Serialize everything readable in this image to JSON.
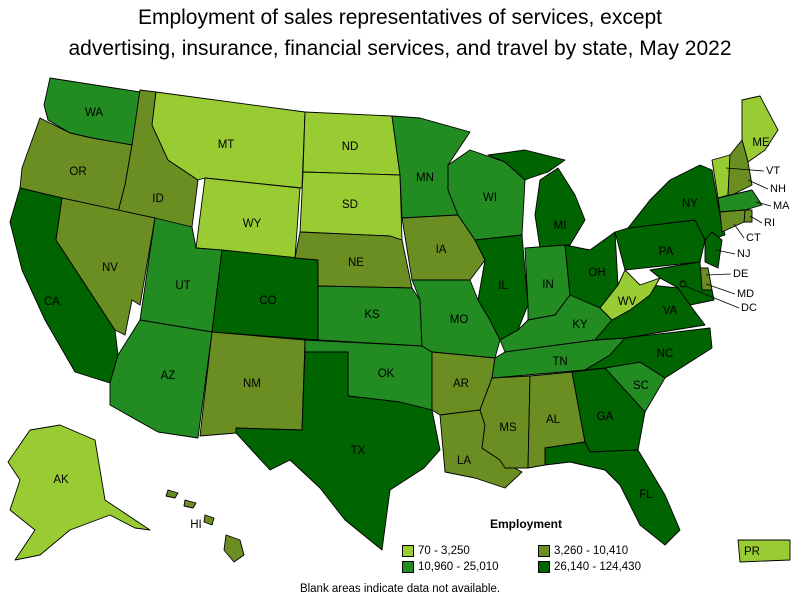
{
  "title": {
    "line1": "Employment of sales representatives of services, except",
    "line2": "advertising, insurance, financial services, and travel by state, May 2022"
  },
  "colors": {
    "tier1": "#99cc33",
    "tier2": "#6b8e23",
    "tier3": "#228b22",
    "tier4": "#006400"
  },
  "legend": {
    "title": "Employment",
    "items": [
      {
        "label": "70 - 3,250",
        "tier": "tier1"
      },
      {
        "label": "3,260 - 10,410",
        "tier": "tier2"
      },
      {
        "label": "10,960 - 25,010",
        "tier": "tier3"
      },
      {
        "label": "26,140 - 124,430",
        "tier": "tier4"
      }
    ]
  },
  "note": "Blank areas indicate data not available.",
  "states": {
    "WA": "tier3",
    "OR": "tier2",
    "CA": "tier4",
    "ID": "tier2",
    "NV": "tier2",
    "MT": "tier1",
    "WY": "tier1",
    "UT": "tier3",
    "AZ": "tier3",
    "CO": "tier4",
    "NM": "tier2",
    "ND": "tier1",
    "SD": "tier1",
    "NE": "tier2",
    "KS": "tier3",
    "OK": "tier3",
    "TX": "tier4",
    "MN": "tier3",
    "IA": "tier2",
    "MO": "tier3",
    "AR": "tier2",
    "LA": "tier2",
    "WI": "tier3",
    "IL": "tier4",
    "MI": "tier4",
    "IN": "tier3",
    "OH": "tier4",
    "KY": "tier3",
    "TN": "tier3",
    "MS": "tier2",
    "AL": "tier2",
    "GA": "tier4",
    "FL": "tier4",
    "SC": "tier3",
    "NC": "tier4",
    "VA": "tier4",
    "WV": "tier1",
    "PA": "tier4",
    "NY": "tier4",
    "ME": "tier1",
    "VT": "tier1",
    "NH": "tier2",
    "MA": "tier3",
    "RI": "tier2",
    "CT": "tier2",
    "NJ": "tier4",
    "DE": "tier2",
    "MD": "tier4",
    "DC": "tier4",
    "AK": "tier1",
    "HI": "tier2",
    "PR": "tier1"
  },
  "labels": {
    "WA": "WA",
    "OR": "OR",
    "CA": "CA",
    "ID": "ID",
    "NV": "NV",
    "MT": "MT",
    "WY": "WY",
    "UT": "UT",
    "AZ": "AZ",
    "CO": "CO",
    "NM": "NM",
    "ND": "ND",
    "SD": "SD",
    "NE": "NE",
    "KS": "KS",
    "OK": "OK",
    "TX": "TX",
    "MN": "MN",
    "IA": "IA",
    "MO": "MO",
    "AR": "AR",
    "LA": "LA",
    "WI": "WI",
    "IL": "IL",
    "MI": "MI",
    "IN": "IN",
    "OH": "OH",
    "KY": "KY",
    "TN": "TN",
    "MS": "MS",
    "AL": "AL",
    "GA": "GA",
    "FL": "FL",
    "SC": "SC",
    "NC": "NC",
    "VA": "VA",
    "WV": "WV",
    "PA": "PA",
    "NY": "NY",
    "ME": "ME",
    "VT": "VT",
    "NH": "NH",
    "MA": "MA",
    "RI": "RI",
    "CT": "CT",
    "NJ": "NJ",
    "DE": "DE",
    "MD": "MD",
    "DC": "DC",
    "AK": "AK",
    "HI": "HI",
    "PR": "PR"
  }
}
